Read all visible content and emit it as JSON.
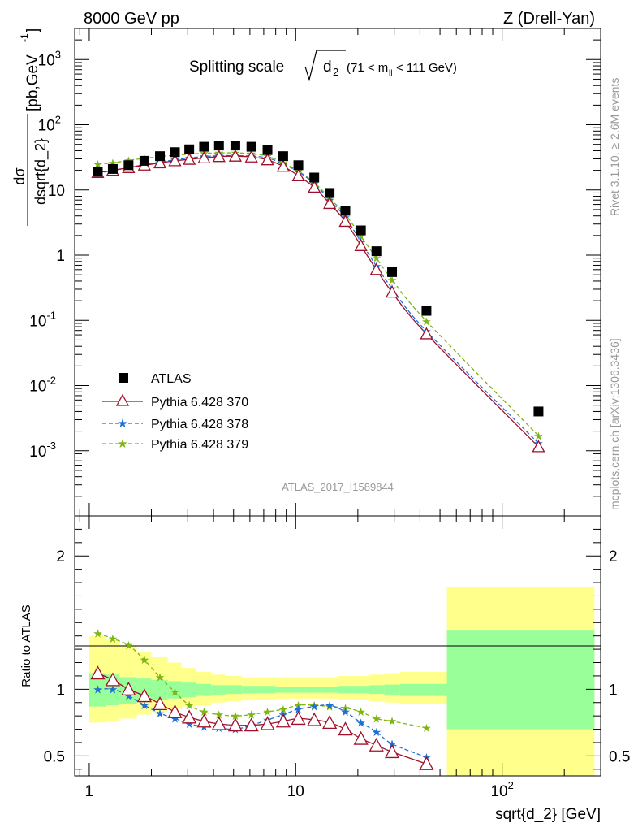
{
  "header": {
    "left": "8000 GeV pp",
    "right": "Z (Drell-Yan)"
  },
  "side_labels": {
    "rivet": "Rivet 3.1.10, ≥ 2.6M events",
    "mcplots": "mcplots.cern.ch [arXiv:1306.3436]"
  },
  "chart_data": [
    {
      "type": "scatter",
      "title": "Splitting scale √d₂ (71 < m_ll < 111 GeV)",
      "title_main": "Splitting scale",
      "title_symbol": "d",
      "title_sub": "2",
      "title_range_pre": "(71 < m",
      "title_range_sub": "ll",
      "title_range_post": " < 111 GeV)",
      "watermark": "ATLAS_2017_I1589844",
      "ylabel_num": "dσ",
      "ylabel_den": "dsqrt{d_2}",
      "ylabel_units": "[pb,GeV",
      "ylabel_units_exp": "-1",
      "ylabel_units_close": "]",
      "xscale": "log",
      "yscale": "log",
      "xlim": [
        0.85,
        300
      ],
      "ylim": [
        0.0001,
        3000
      ],
      "yticks": [
        {
          "v": 0.001,
          "base": "10",
          "exp": "-3"
        },
        {
          "v": 0.01,
          "base": "10",
          "exp": "-2"
        },
        {
          "v": 0.1,
          "base": "10",
          "exp": "-1"
        },
        {
          "v": 1,
          "base": "1",
          "exp": ""
        },
        {
          "v": 10,
          "base": "10",
          "exp": ""
        },
        {
          "v": 100,
          "base": "10",
          "exp": "2"
        },
        {
          "v": 1000,
          "base": "10",
          "exp": "3"
        }
      ],
      "legend_position": "lower-left",
      "x": [
        1.1,
        1.3,
        1.55,
        1.85,
        2.2,
        2.6,
        3.05,
        3.6,
        4.25,
        5.1,
        6.1,
        7.3,
        8.7,
        10.3,
        12.3,
        14.6,
        17.4,
        20.7,
        24.6,
        29.3,
        43,
        150
      ],
      "series": [
        {
          "name": "ATLAS",
          "color": "#000000",
          "style": "square",
          "values": [
            19,
            21,
            24,
            28,
            33,
            38,
            42,
            46,
            48,
            48,
            46,
            41,
            33,
            24,
            15.5,
            9,
            4.8,
            2.4,
            1.15,
            0.55,
            0.14,
            0.004
          ]
        },
        {
          "name": "Pythia 6.428 370",
          "color": "#a0102a",
          "style": "triangle",
          "dash": "",
          "values": [
            18.5,
            20,
            22,
            24,
            26,
            28,
            29.5,
            31,
            32.5,
            33,
            32,
            29,
            23,
            16.5,
            11,
            6.2,
            3.3,
            1.4,
            0.6,
            0.27,
            0.062,
            0.00115
          ]
        },
        {
          "name": "Pythia 6.428 378",
          "color": "#1f6fd6",
          "style": "star",
          "dash": "5,3",
          "values": [
            18,
            20,
            22,
            24.5,
            27,
            29,
            31,
            32.5,
            33.5,
            33.5,
            33,
            31,
            25,
            19,
            12.5,
            7,
            3.8,
            1.6,
            0.68,
            0.31,
            0.068,
            0.0013
          ]
        },
        {
          "name": "Pythia 6.428 379",
          "color": "#7db610",
          "style": "star",
          "dash": "5,3",
          "values": [
            25,
            26,
            28.5,
            30.5,
            32.5,
            34,
            35.5,
            36.5,
            37,
            37,
            36,
            33,
            26,
            19.5,
            13,
            7.5,
            4.2,
            1.95,
            0.9,
            0.42,
            0.097,
            0.0017
          ]
        }
      ]
    },
    {
      "type": "line",
      "ylabel": "Ratio to ATLAS",
      "xlabel": "sqrt{d_2} [GeV]",
      "xscale": "log",
      "xlim": [
        0.85,
        300
      ],
      "ylim": [
        0.35,
        2.3
      ],
      "yticks": [
        0.5,
        1,
        2
      ],
      "xticks": [
        {
          "v": 1,
          "base": "1",
          "exp": ""
        },
        {
          "v": 10,
          "base": "10",
          "exp": ""
        },
        {
          "v": 100,
          "base": "10",
          "exp": "2"
        }
      ],
      "bin_edges": [
        1,
        1.2,
        1.4,
        1.7,
        2.0,
        2.4,
        2.8,
        3.3,
        3.9,
        4.6,
        5.5,
        6.7,
        8.0,
        9.5,
        11.2,
        13.4,
        15.9,
        19.0,
        22.6,
        26.9,
        32.0,
        54,
        280
      ],
      "band_green": [
        [
          0.87,
          1.12
        ],
        [
          0.88,
          1.11
        ],
        [
          0.89,
          1.09
        ],
        [
          0.91,
          1.08
        ],
        [
          0.92,
          1.07
        ],
        [
          0.93,
          1.06
        ],
        [
          0.94,
          1.05
        ],
        [
          0.95,
          1.04
        ],
        [
          0.96,
          1.03
        ],
        [
          0.965,
          1.03
        ],
        [
          0.97,
          1.025
        ],
        [
          0.97,
          1.025
        ],
        [
          0.975,
          1.02
        ],
        [
          0.975,
          1.02
        ],
        [
          0.975,
          1.02
        ],
        [
          0.975,
          1.02
        ],
        [
          0.97,
          1.025
        ],
        [
          0.97,
          1.025
        ],
        [
          0.965,
          1.03
        ],
        [
          0.96,
          1.035
        ],
        [
          0.95,
          1.04
        ],
        [
          0.7,
          1.44
        ]
      ],
      "band_yellow": [
        [
          0.75,
          1.4
        ],
        [
          0.76,
          1.38
        ],
        [
          0.78,
          1.33
        ],
        [
          0.81,
          1.28
        ],
        [
          0.83,
          1.24
        ],
        [
          0.85,
          1.2
        ],
        [
          0.87,
          1.16
        ],
        [
          0.88,
          1.13
        ],
        [
          0.9,
          1.11
        ],
        [
          0.91,
          1.1
        ],
        [
          0.92,
          1.09
        ],
        [
          0.92,
          1.09
        ],
        [
          0.93,
          1.09
        ],
        [
          0.93,
          1.09
        ],
        [
          0.93,
          1.09
        ],
        [
          0.93,
          1.09
        ],
        [
          0.92,
          1.1
        ],
        [
          0.92,
          1.1
        ],
        [
          0.91,
          1.11
        ],
        [
          0.9,
          1.12
        ],
        [
          0.89,
          1.13
        ],
        [
          0.35,
          1.77
        ]
      ],
      "x": [
        1.1,
        1.3,
        1.55,
        1.85,
        2.2,
        2.6,
        3.05,
        3.6,
        4.25,
        5.1,
        6.1,
        7.3,
        8.7,
        10.3,
        12.3,
        14.6,
        17.4,
        20.7,
        24.6,
        29.3,
        43
      ],
      "series": [
        {
          "name": "Pythia 6.428 370",
          "color": "#a0102a",
          "style": "triangle",
          "dash": "",
          "values": [
            1.12,
            1.07,
            1.0,
            0.95,
            0.89,
            0.83,
            0.79,
            0.76,
            0.74,
            0.73,
            0.73,
            0.74,
            0.76,
            0.78,
            0.77,
            0.75,
            0.7,
            0.63,
            0.58,
            0.53,
            0.44
          ]
        },
        {
          "name": "Pythia 6.428 378",
          "color": "#1f6fd6",
          "style": "star",
          "dash": "5,3",
          "values": [
            1.0,
            1.0,
            0.95,
            0.88,
            0.82,
            0.78,
            0.74,
            0.72,
            0.71,
            0.7,
            0.73,
            0.77,
            0.81,
            0.85,
            0.87,
            0.88,
            0.83,
            0.75,
            0.68,
            0.59,
            0.49
          ]
        },
        {
          "name": "Pythia 6.428 379",
          "color": "#7db610",
          "style": "star",
          "dash": "5,3",
          "values": [
            1.42,
            1.38,
            1.33,
            1.22,
            1.09,
            0.98,
            0.88,
            0.83,
            0.81,
            0.8,
            0.81,
            0.83,
            0.85,
            0.88,
            0.88,
            0.87,
            0.86,
            0.83,
            0.78,
            0.76,
            0.71
          ]
        }
      ]
    }
  ]
}
